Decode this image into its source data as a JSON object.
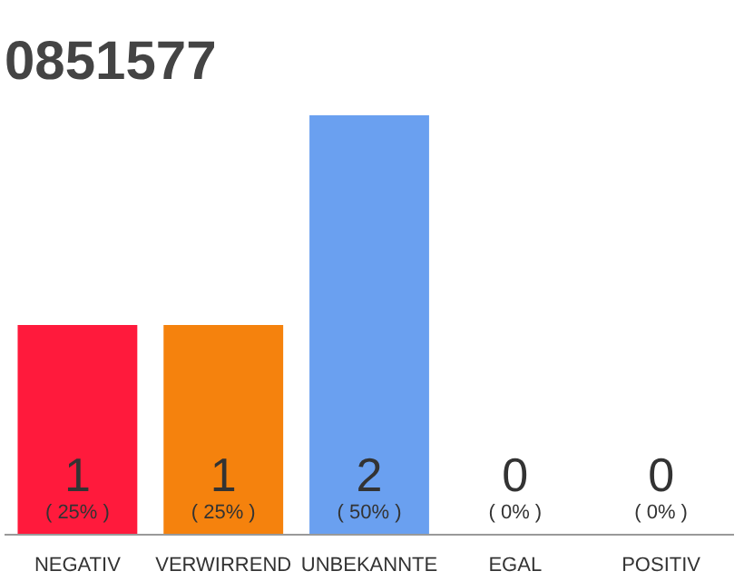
{
  "chart_data": {
    "type": "bar",
    "title": "0851577",
    "categories": [
      "NEGATIV",
      "VERWIRREND",
      "UNBEKANNTE",
      "EGAL",
      "POSITIV"
    ],
    "values": [
      25,
      25,
      50,
      0,
      0
    ],
    "colors": [
      "#ff1a3c",
      "#f5820d",
      "#6aa0f0",
      "#eeeeee",
      "#eeeeee"
    ],
    "ylim": [
      0,
      50
    ],
    "value_labels": [
      "( 25% )",
      "( 25% )",
      "( 50% )",
      "( 0% )",
      "( 0% )"
    ],
    "annotations": [
      {
        "text": "1",
        "x": "NEGATIV",
        "y": 0
      },
      {
        "text": "1",
        "x": "VERWIRREND",
        "y": 0
      },
      {
        "text": "2",
        "x": "UNBEKANNTE",
        "y": 0
      },
      {
        "text": "0",
        "x": "EGAL",
        "y": 0
      },
      {
        "text": "0",
        "x": "POSITIV",
        "y": 0
      }
    ]
  }
}
